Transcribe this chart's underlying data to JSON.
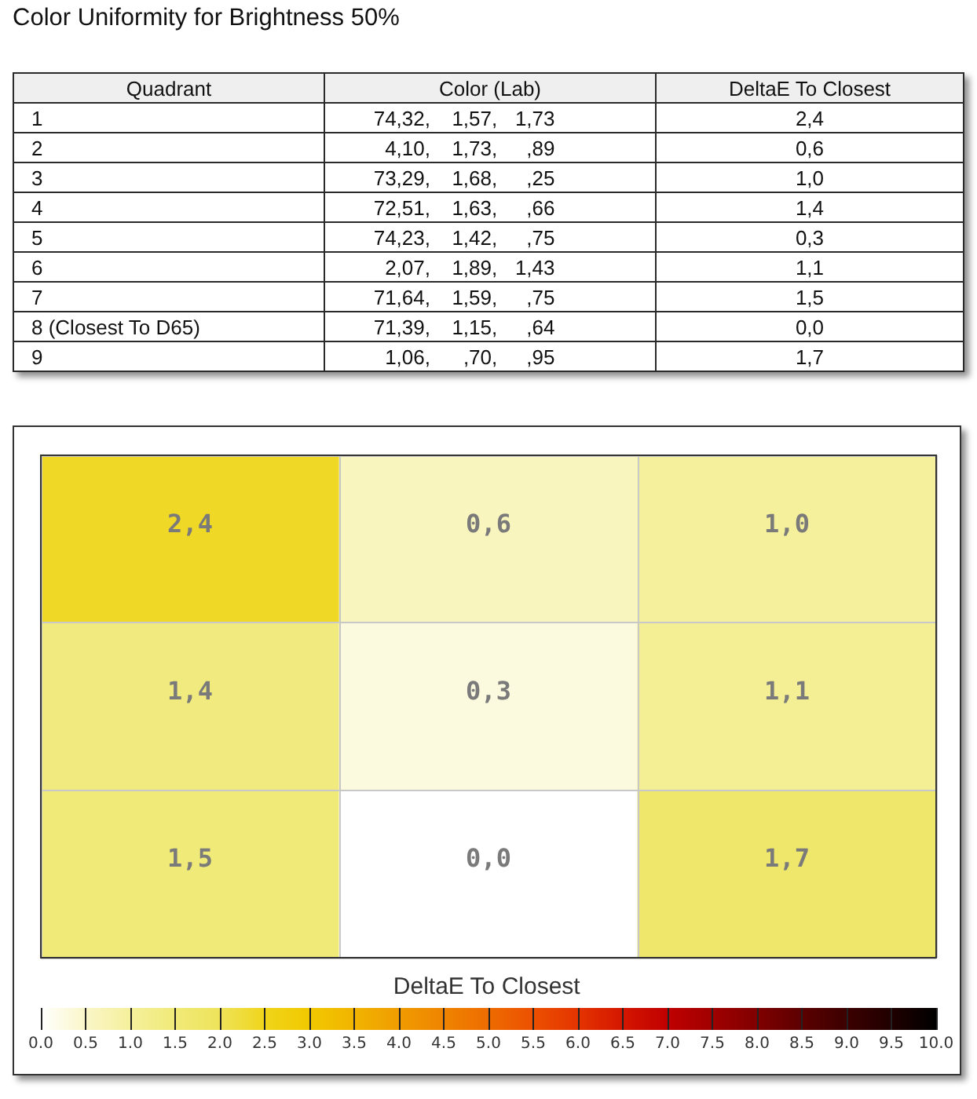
{
  "chart_data": [
    {
      "type": "other",
      "title": "Color Uniformity for Brightness 50%",
      "categories": [
        "Quadrant",
        "Color (Lab)",
        "DeltaE To Closest"
      ],
      "annotations": [
        "1",
        "74,32, 1,57, 1,73",
        "2,4",
        "2",
        "4,10, 1,73, ,89",
        "0,6",
        "3",
        "73,29, 1,68, ,25",
        "1,0",
        "4",
        "72,51, 1,63, ,66",
        "1,4",
        "5",
        "74,23, 1,42, ,75",
        "0,3",
        "6",
        "2,07, 1,89, 1,43",
        "1,1",
        "7",
        "71,64, 1,59, ,75",
        "1,5",
        "8 (Closest To D65)",
        "71,39, 1,15, ,64",
        "0,0",
        "9",
        "1,06, ,70, ,95",
        "1,7"
      ]
    },
    {
      "type": "heatmap",
      "categories": [
        null,
        null,
        null
      ],
      "y_categories": [
        null,
        null,
        null
      ],
      "cells": [
        [
          2.4,
          0.6,
          1.0
        ],
        [
          1.4,
          0.3,
          1.1
        ],
        [
          1.5,
          0.0,
          1.7
        ]
      ],
      "cell_labels": [
        [
          "2,4",
          "0,6",
          "1,0"
        ],
        [
          "1,4",
          "0,3",
          "1,1"
        ],
        [
          "1,5",
          "0,0",
          "1,7"
        ]
      ],
      "clabel": "DeltaE To Closest",
      "clim": [
        0,
        10
      ],
      "cticks": [
        {
          "value": 0,
          "label": "0.0"
        },
        {
          "value": 0.5,
          "label": "0.5"
        },
        {
          "value": 1,
          "label": "1.0"
        },
        {
          "value": 1.5,
          "label": "1.5"
        },
        {
          "value": 2,
          "label": "2.0"
        },
        {
          "value": 2.5,
          "label": "2.5"
        },
        {
          "value": 3,
          "label": "3.0"
        },
        {
          "value": 3.5,
          "label": "3.5"
        },
        {
          "value": 4,
          "label": "4.0"
        },
        {
          "value": 4.5,
          "label": "4.5"
        },
        {
          "value": 5,
          "label": "5.0"
        },
        {
          "value": 5.5,
          "label": "5.5"
        },
        {
          "value": 6,
          "label": "6.0"
        },
        {
          "value": 6.5,
          "label": "6.5"
        },
        {
          "value": 7,
          "label": "7.0"
        },
        {
          "value": 7.5,
          "label": "7.5"
        },
        {
          "value": 8,
          "label": "8.0"
        },
        {
          "value": 8.5,
          "label": "8.5"
        },
        {
          "value": 9,
          "label": "9.0"
        },
        {
          "value": 9.5,
          "label": "9.5"
        },
        {
          "value": 10,
          "label": "10.0"
        }
      ],
      "grid": true
    }
  ]
}
